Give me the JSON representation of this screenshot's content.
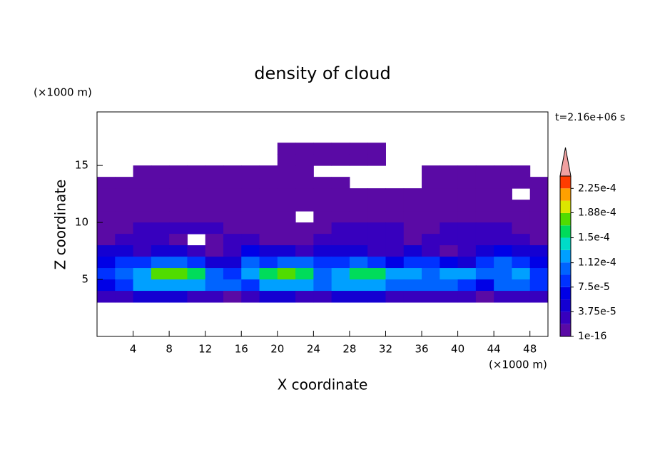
{
  "chart_data": {
    "type": "contour",
    "title": "density of cloud",
    "xlabel": "X coordinate",
    "ylabel": "Z coordinate",
    "x_unit": "(×1000 m)",
    "y_unit": "(×1000 m)",
    "time_label": "t=2.16e+06 s",
    "xlim": [
      0,
      50
    ],
    "ylim": [
      0,
      19.7
    ],
    "xticks": [
      4,
      8,
      12,
      16,
      20,
      24,
      28,
      32,
      36,
      40,
      44,
      48
    ],
    "yticks": [
      5,
      10,
      15
    ],
    "x": [
      1,
      3,
      5,
      7,
      9,
      11,
      13,
      15,
      17,
      19,
      21,
      23,
      25,
      27,
      29,
      31,
      33,
      35,
      37,
      39,
      41,
      43,
      45,
      47,
      49
    ],
    "y": [
      16.5,
      15.5,
      14.5,
      13.5,
      12.5,
      11.5,
      10.5,
      9.5,
      8.5,
      7.5,
      6.5,
      5.5,
      4.5,
      3.5
    ],
    "z": [
      [
        null,
        null,
        null,
        null,
        null,
        null,
        null,
        null,
        null,
        null,
        1e-05,
        1e-05,
        1e-05,
        1e-05,
        1e-05,
        1e-05,
        null,
        null,
        null,
        null,
        null,
        null,
        null,
        null,
        null
      ],
      [
        null,
        null,
        null,
        null,
        null,
        null,
        null,
        null,
        null,
        null,
        1e-05,
        1e-05,
        1e-05,
        1e-05,
        1e-05,
        1e-05,
        null,
        null,
        null,
        null,
        null,
        null,
        null,
        null,
        null
      ],
      [
        null,
        null,
        1e-05,
        1e-05,
        1e-05,
        1e-05,
        1e-05,
        1e-05,
        1e-05,
        1e-05,
        1e-05,
        1e-05,
        null,
        null,
        null,
        null,
        null,
        null,
        1e-05,
        1e-05,
        1e-05,
        1e-05,
        1e-05,
        1e-05,
        null
      ],
      [
        1e-05,
        1e-05,
        1e-05,
        1e-05,
        1e-05,
        1e-05,
        1e-05,
        1e-05,
        1e-05,
        1e-05,
        1e-05,
        1e-05,
        1e-05,
        1e-05,
        null,
        null,
        null,
        null,
        1e-05,
        1e-05,
        1e-05,
        1e-05,
        1e-05,
        1e-05,
        1e-05
      ],
      [
        1e-05,
        1e-05,
        1e-05,
        1e-05,
        1e-05,
        1e-05,
        1e-05,
        1e-05,
        1e-05,
        1e-05,
        1e-05,
        1e-05,
        1e-05,
        1e-05,
        1e-05,
        1e-05,
        1e-05,
        1e-05,
        1e-05,
        1e-05,
        1e-05,
        1e-05,
        1e-05,
        null,
        1e-05
      ],
      [
        1e-05,
        1e-05,
        1e-05,
        1e-05,
        1e-05,
        1e-05,
        1e-05,
        1e-05,
        1e-05,
        1e-05,
        1e-05,
        1e-05,
        1e-05,
        1e-05,
        1e-05,
        1e-05,
        1e-05,
        1e-05,
        1e-05,
        1e-05,
        1e-05,
        1e-05,
        1e-05,
        1e-05,
        1e-05
      ],
      [
        1e-05,
        1e-05,
        1e-05,
        1e-05,
        1e-05,
        1e-05,
        1e-05,
        1e-05,
        1e-05,
        1e-05,
        1e-05,
        null,
        1e-05,
        1e-05,
        1e-05,
        1e-05,
        1e-05,
        1e-05,
        1e-05,
        1e-05,
        1e-05,
        1e-05,
        1e-05,
        1e-05,
        1e-05
      ],
      [
        1e-05,
        1e-05,
        3e-05,
        3e-05,
        3e-05,
        3e-05,
        3e-05,
        1e-05,
        1e-05,
        1e-05,
        1e-05,
        1e-05,
        1e-05,
        3e-05,
        3e-05,
        3e-05,
        3e-05,
        1e-05,
        1e-05,
        3e-05,
        3e-05,
        3e-05,
        3e-05,
        1e-05,
        1e-05
      ],
      [
        1e-05,
        3e-05,
        3e-05,
        3e-05,
        1e-05,
        null,
        1e-05,
        3e-05,
        3e-05,
        1e-05,
        1e-05,
        1e-05,
        3e-05,
        3e-05,
        3e-05,
        3e-05,
        3e-05,
        1e-05,
        3e-05,
        3e-05,
        3e-05,
        3e-05,
        3e-05,
        3e-05,
        1e-05
      ],
      [
        5e-05,
        5e-05,
        3e-05,
        5e-05,
        5e-05,
        3e-05,
        1e-05,
        3e-05,
        7e-05,
        5e-05,
        5e-05,
        3e-05,
        5e-05,
        5e-05,
        5e-05,
        3e-05,
        3e-05,
        5e-05,
        3e-05,
        1e-05,
        3e-05,
        5e-05,
        7e-05,
        5e-05,
        5e-05
      ],
      [
        7e-05,
        9e-05,
        9e-05,
        0.00011,
        0.00011,
        9e-05,
        5e-05,
        5e-05,
        0.00011,
        9e-05,
        0.00011,
        0.00011,
        9e-05,
        9e-05,
        0.00011,
        9e-05,
        7e-05,
        9e-05,
        9e-05,
        7e-05,
        5e-05,
        9e-05,
        0.00011,
        9e-05,
        7e-05
      ],
      [
        9e-05,
        0.00011,
        0.00013,
        0.00017,
        0.00017,
        0.00015,
        0.00011,
        9e-05,
        0.00013,
        0.00015,
        0.00017,
        0.00015,
        0.00011,
        0.00013,
        0.00015,
        0.00015,
        0.00013,
        0.00013,
        0.00011,
        0.00013,
        0.00013,
        0.00011,
        0.00011,
        0.00013,
        9e-05
      ],
      [
        7e-05,
        9e-05,
        0.00013,
        0.00013,
        0.00013,
        0.00013,
        0.00011,
        0.00011,
        9e-05,
        0.00013,
        0.00013,
        0.00013,
        0.00011,
        0.00013,
        0.00013,
        0.00013,
        0.00011,
        0.00011,
        0.00011,
        0.00011,
        9e-05,
        7e-05,
        0.00011,
        0.00011,
        9e-05
      ],
      [
        3e-05,
        3e-05,
        5e-05,
        5e-05,
        5e-05,
        3e-05,
        3e-05,
        1e-05,
        3e-05,
        5e-05,
        5e-05,
        3e-05,
        3e-05,
        5e-05,
        5e-05,
        5e-05,
        3e-05,
        3e-05,
        3e-05,
        3e-05,
        3e-05,
        1e-05,
        3e-05,
        3e-05,
        3e-05
      ]
    ],
    "cell_size": [
      2,
      1
    ],
    "levels": [
      1e-16,
      1.875e-05,
      3.75e-05,
      5.625e-05,
      7.5e-05,
      9.375e-05,
      0.0001125,
      0.00013125,
      0.00015,
      0.00016875,
      0.0001875,
      0.00020625,
      0.000225,
      0.00024375
    ],
    "colors": [
      "#5a0aa5",
      "#3700be",
      "#1400d2",
      "#0000e6",
      "#0032ff",
      "#0064ff",
      "#00a0ff",
      "#00dcc8",
      "#00dc5a",
      "#50dc00",
      "#dce600",
      "#ffa000",
      "#ff3c00"
    ],
    "extend_color": "#f0a0a0",
    "cbar_ticks": [
      {
        "value": 1e-16,
        "label": "1e-16"
      },
      {
        "value": 3.75e-05,
        "label": "3.75e-5"
      },
      {
        "value": 7.5e-05,
        "label": "7.5e-5"
      },
      {
        "value": 0.000112,
        "label": "1.12e-4"
      },
      {
        "value": 0.00015,
        "label": "1.5e-4"
      },
      {
        "value": 0.000188,
        "label": "1.88e-4"
      },
      {
        "value": 0.000225,
        "label": "2.25e-4"
      }
    ]
  }
}
